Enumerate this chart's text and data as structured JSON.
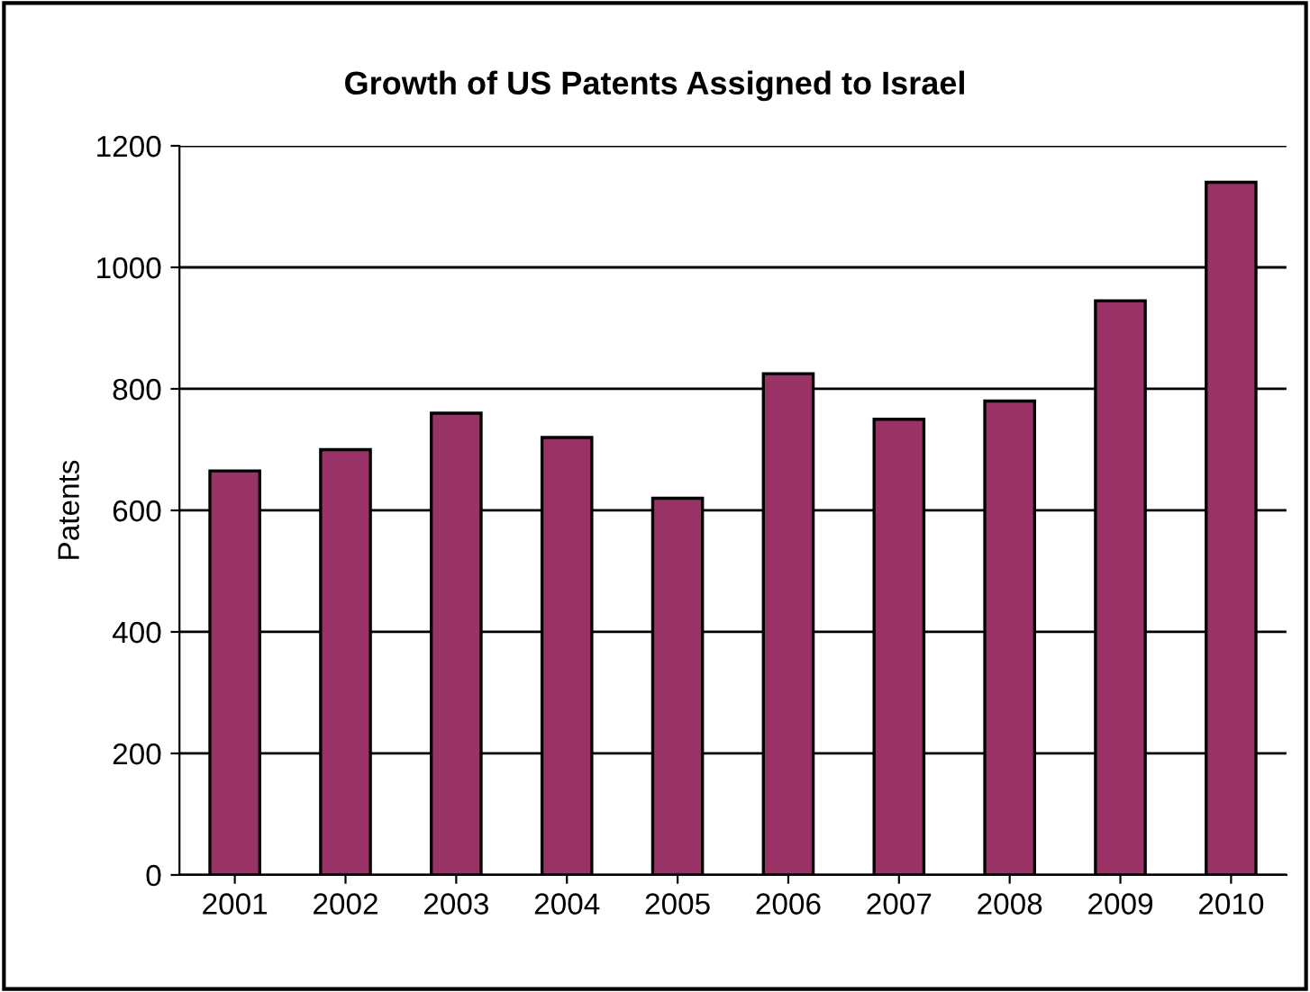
{
  "chart_data": {
    "type": "bar",
    "title": "Growth of US Patents Assigned to Israel",
    "ylabel": "Patents",
    "categories": [
      "2001",
      "2002",
      "2003",
      "2004",
      "2005",
      "2006",
      "2007",
      "2008",
      "2009",
      "2010"
    ],
    "values": [
      665,
      700,
      760,
      720,
      620,
      825,
      750,
      780,
      945,
      1140
    ],
    "color": "#993366",
    "ylim": [
      0,
      1200
    ],
    "yticks": [
      0,
      200,
      400,
      600,
      800,
      1000,
      1200
    ],
    "grid": "y"
  }
}
